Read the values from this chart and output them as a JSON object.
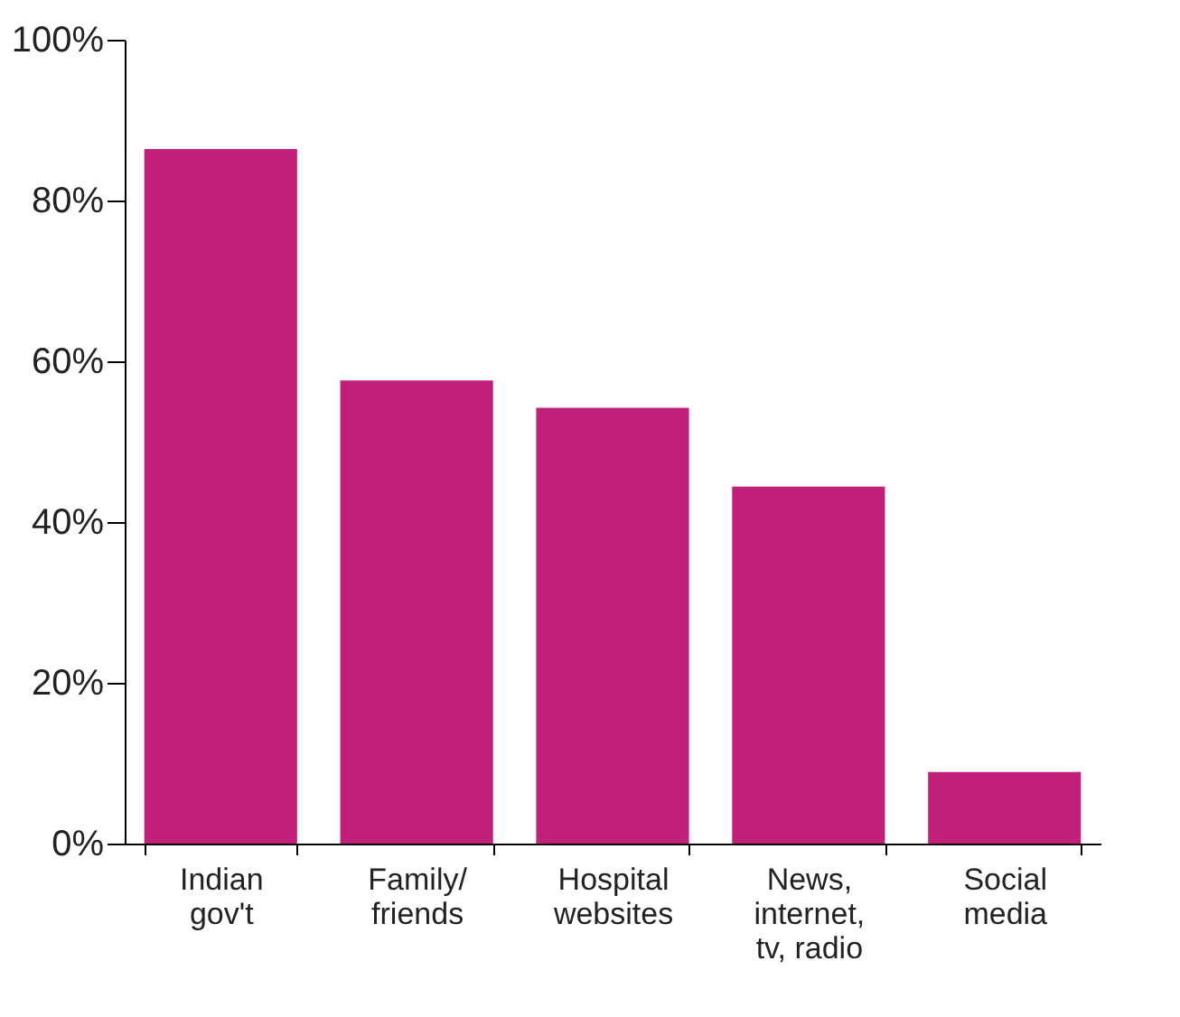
{
  "chart_data": {
    "type": "bar",
    "categories": [
      "Indian\ngov't",
      "Family/\nfriends",
      "Hospital\nwebsites",
      "News,\ninternet,\ntv, radio",
      "Social\nmedia"
    ],
    "values": [
      86.4,
      57.6,
      54.2,
      44.4,
      8.9
    ],
    "color": "#c0207a",
    "ylim": [
      0,
      100
    ],
    "yticks": [
      {
        "value": 0,
        "label": "0%"
      },
      {
        "value": 20,
        "label": "20%"
      },
      {
        "value": 40,
        "label": "40%"
      },
      {
        "value": 60,
        "label": "60%"
      },
      {
        "value": 80,
        "label": "80%"
      },
      {
        "value": 100,
        "label": "100%"
      }
    ],
    "grid": false
  }
}
